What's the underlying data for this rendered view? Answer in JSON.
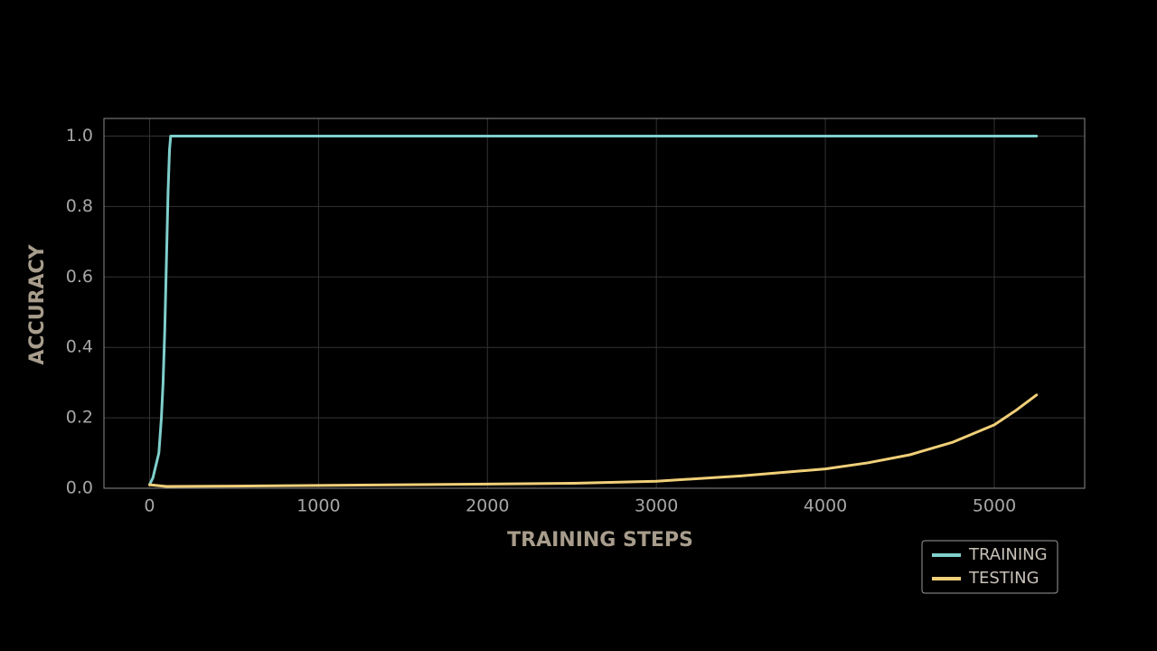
{
  "chart_data": {
    "type": "line",
    "xlabel": "TRAINING STEPS",
    "ylabel": "ACCURACY",
    "xlim": [
      -270,
      5535
    ],
    "ylim": [
      0,
      1.05
    ],
    "xticks": [
      0,
      1000,
      2000,
      3000,
      4000,
      5000
    ],
    "yticks": [
      {
        "value": 0,
        "label": "0.0"
      },
      0.2,
      0.4,
      0.6,
      0.8,
      {
        "value": 1,
        "label": "1.0"
      }
    ],
    "grid": true,
    "legend": "bottom-right",
    "series": [
      {
        "name": "TRAINING",
        "color": "#7fcfcc",
        "x": [
          0,
          20,
          40,
          55,
          70,
          80,
          90,
          100,
          110,
          118,
          125,
          5250
        ],
        "values": [
          0.01,
          0.03,
          0.07,
          0.1,
          0.2,
          0.3,
          0.45,
          0.65,
          0.85,
          0.96,
          1.0,
          1.0
        ]
      },
      {
        "name": "TESTING",
        "color": "#f0cf78",
        "x": [
          0,
          100,
          500,
          1000,
          1500,
          2000,
          2500,
          3000,
          3500,
          4000,
          4250,
          4500,
          4750,
          5000,
          5125,
          5250
        ],
        "values": [
          0.01,
          0.005,
          0.006,
          0.008,
          0.01,
          0.012,
          0.014,
          0.02,
          0.035,
          0.055,
          0.072,
          0.095,
          0.13,
          0.18,
          0.22,
          0.265
        ]
      }
    ]
  }
}
